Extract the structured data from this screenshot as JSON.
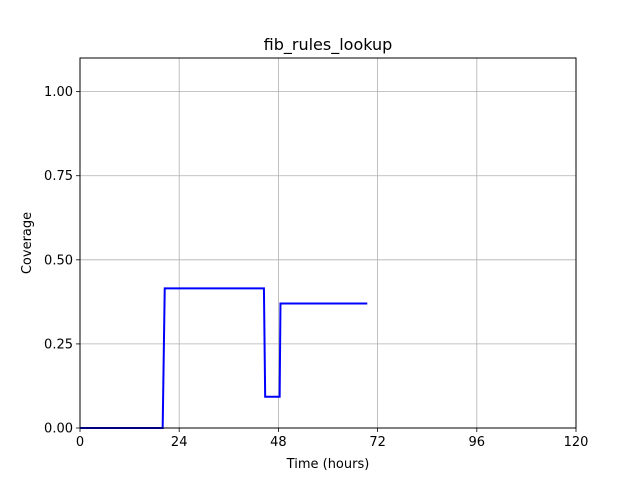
{
  "chart_data": {
    "type": "line",
    "title": "fib_rules_lookup",
    "xlabel": "Time (hours)",
    "ylabel": "Coverage",
    "xlim": [
      0,
      120
    ],
    "ylim": [
      0,
      1.1
    ],
    "xticks": [
      0,
      24,
      48,
      72,
      96,
      120
    ],
    "xtick_labels": [
      "0",
      "24",
      "48",
      "72",
      "96",
      "120"
    ],
    "yticks": [
      0,
      0.25,
      0.5,
      0.75,
      1.0
    ],
    "ytick_labels": [
      "0.00",
      "0.25",
      "0.50",
      "0.75",
      "1.00"
    ],
    "grid": true,
    "series": [
      {
        "color": "#0000ff",
        "x": [
          0,
          20,
          20.5,
          44.5,
          44.8,
          48.3,
          48.5,
          69.5
        ],
        "y": [
          0,
          0,
          0.415,
          0.415,
          0.093,
          0.093,
          0.37,
          0.37
        ]
      }
    ]
  }
}
